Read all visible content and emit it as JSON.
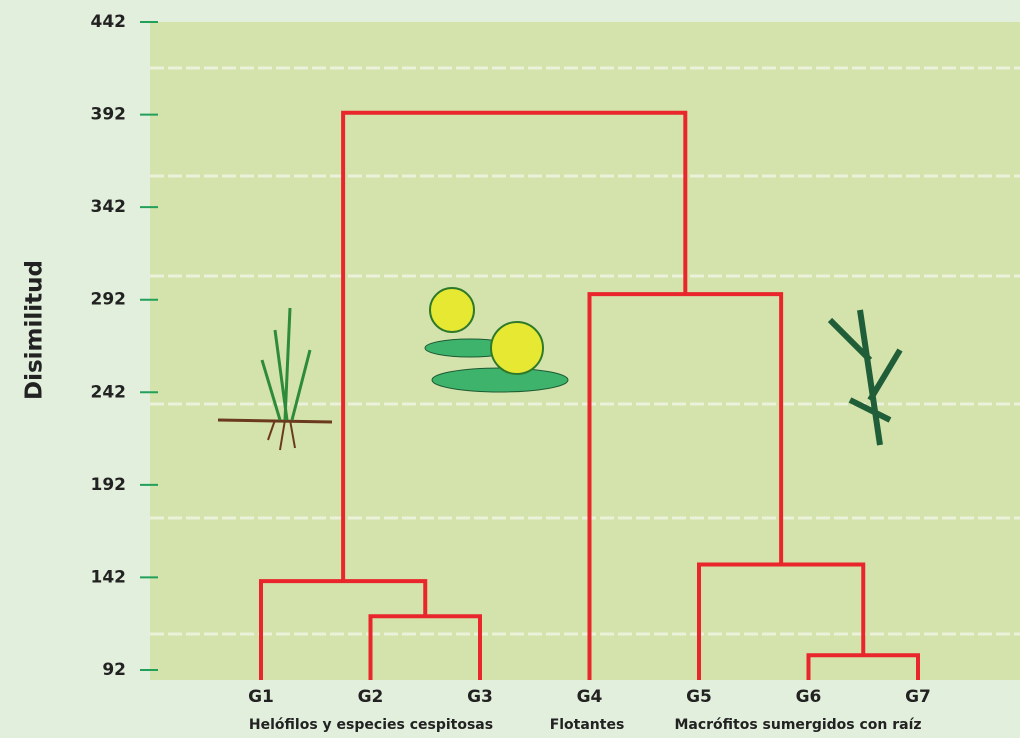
{
  "chart_data": {
    "type": "dendrogram",
    "y_label": "Disimilitud",
    "ylim": [
      92,
      442
    ],
    "yticks": [
      92,
      142,
      192,
      242,
      292,
      342,
      392,
      442
    ],
    "color": "#e8262b",
    "tree": {
      "height": 393,
      "children": [
        {
          "height": 140,
          "children": [
            {
              "label": "G1"
            },
            {
              "height": 121,
              "children": [
                {
                  "label": "G2"
                },
                {
                  "label": "G3"
                }
              ]
            }
          ]
        },
        {
          "height": 295,
          "children": [
            {
              "label": "G4"
            },
            {
              "height": 149,
              "children": [
                {
                  "label": "G5"
                },
                {
                  "height": 100,
                  "children": [
                    {
                      "label": "G6"
                    },
                    {
                      "label": "G7"
                    }
                  ]
                }
              ]
            }
          ]
        }
      ]
    },
    "group_labels": [
      "Helófilos y especies cespitosas",
      "Flotantes",
      "Macrófitos sumergidos con raíz"
    ]
  }
}
